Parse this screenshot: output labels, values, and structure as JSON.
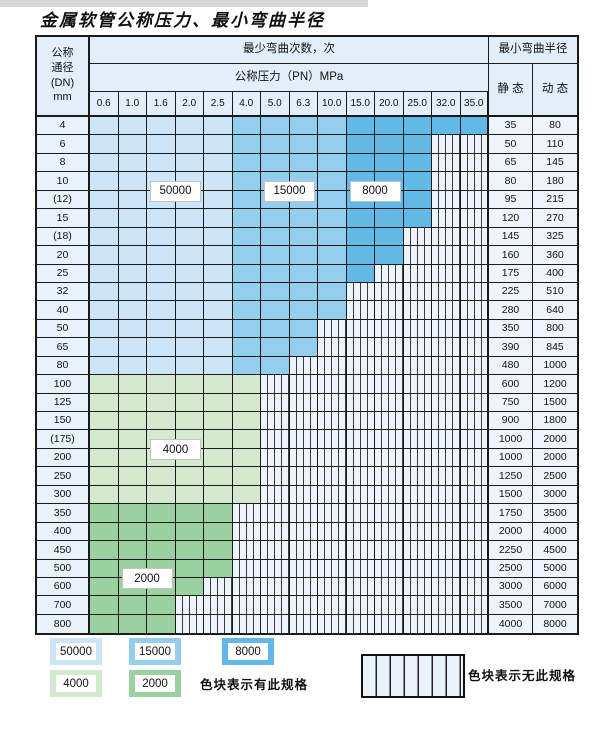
{
  "title": "金属软管公称压力、最小弯曲半径",
  "table": {
    "header": {
      "dn_lines": [
        "公称",
        "通径",
        "(DN)",
        "mm"
      ],
      "cycles_header": "最少弯曲次数，次",
      "radius_header": "最小弯曲半径",
      "pressure_header": "公称压力（PN）MPa",
      "static_label": "静 态",
      "dynamic_label": "动 态",
      "pressure_columns": [
        "0.6",
        "1.0",
        "1.6",
        "2.0",
        "2.5",
        "4.0",
        "5.0",
        "6.3",
        "10.0",
        "15.0",
        "20.0",
        "25.0",
        "32.0",
        "35.0"
      ]
    },
    "rows": [
      {
        "dn": "4",
        "colored_cols": 14,
        "band": "blue",
        "static": "35",
        "dynamic": "80"
      },
      {
        "dn": "6",
        "colored_cols": 12,
        "band": "blue",
        "static": "50",
        "dynamic": "110"
      },
      {
        "dn": "8",
        "colored_cols": 12,
        "band": "blue",
        "static": "65",
        "dynamic": "145"
      },
      {
        "dn": "10",
        "colored_cols": 12,
        "band": "blue",
        "static": "80",
        "dynamic": "180"
      },
      {
        "dn": "(12)",
        "colored_cols": 12,
        "band": "blue",
        "static": "95",
        "dynamic": "215"
      },
      {
        "dn": "15",
        "colored_cols": 12,
        "band": "blue",
        "static": "120",
        "dynamic": "270"
      },
      {
        "dn": "(18)",
        "colored_cols": 11,
        "band": "blue",
        "static": "145",
        "dynamic": "325"
      },
      {
        "dn": "20",
        "colored_cols": 11,
        "band": "blue",
        "static": "160",
        "dynamic": "360"
      },
      {
        "dn": "25",
        "colored_cols": 10,
        "band": "blue",
        "static": "175",
        "dynamic": "400"
      },
      {
        "dn": "32",
        "colored_cols": 9,
        "band": "blue",
        "static": "225",
        "dynamic": "510"
      },
      {
        "dn": "40",
        "colored_cols": 9,
        "band": "blue",
        "static": "280",
        "dynamic": "640"
      },
      {
        "dn": "50",
        "colored_cols": 8,
        "band": "blue",
        "static": "350",
        "dynamic": "800"
      },
      {
        "dn": "65",
        "colored_cols": 8,
        "band": "blue",
        "static": "390",
        "dynamic": "845"
      },
      {
        "dn": "80",
        "colored_cols": 7,
        "band": "blue",
        "static": "480",
        "dynamic": "1000"
      },
      {
        "dn": "100",
        "colored_cols": 6,
        "band": "green4000",
        "static": "600",
        "dynamic": "1200"
      },
      {
        "dn": "125",
        "colored_cols": 6,
        "band": "green4000",
        "static": "750",
        "dynamic": "1500"
      },
      {
        "dn": "150",
        "colored_cols": 6,
        "band": "green4000",
        "static": "900",
        "dynamic": "1800"
      },
      {
        "dn": "(175)",
        "colored_cols": 6,
        "band": "green4000",
        "static": "1000",
        "dynamic": "2000"
      },
      {
        "dn": "200",
        "colored_cols": 6,
        "band": "green4000",
        "static": "1000",
        "dynamic": "2000"
      },
      {
        "dn": "250",
        "colored_cols": 6,
        "band": "green4000",
        "static": "1250",
        "dynamic": "2500"
      },
      {
        "dn": "300",
        "colored_cols": 6,
        "band": "green4000",
        "static": "1500",
        "dynamic": "3000"
      },
      {
        "dn": "350",
        "colored_cols": 5,
        "band": "green2000",
        "static": "1750",
        "dynamic": "3500"
      },
      {
        "dn": "400",
        "colored_cols": 5,
        "band": "green2000",
        "static": "2000",
        "dynamic": "4000"
      },
      {
        "dn": "450",
        "colored_cols": 5,
        "band": "green2000",
        "static": "2250",
        "dynamic": "4500"
      },
      {
        "dn": "500",
        "colored_cols": 5,
        "band": "green2000",
        "static": "2500",
        "dynamic": "5000"
      },
      {
        "dn": "600",
        "colored_cols": 4,
        "band": "green2000",
        "static": "3000",
        "dynamic": "6000"
      },
      {
        "dn": "700",
        "colored_cols": 3,
        "band": "green2000",
        "static": "3500",
        "dynamic": "7000"
      },
      {
        "dn": "800",
        "colored_cols": 3,
        "band": "green2000",
        "static": "4000",
        "dynamic": "8000"
      }
    ],
    "blue_shade_bands": {
      "cycles_50000_col_indices": [
        0,
        4
      ],
      "cycles_15000_col_indices": [
        5,
        8
      ],
      "cycles_8000_col_indices": [
        9,
        13
      ]
    },
    "overlay_labels": [
      {
        "text": "50000",
        "col_start": 2,
        "col_end": 3,
        "between_rows": [
          3,
          4
        ]
      },
      {
        "text": "15000",
        "col_start": 6,
        "col_end": 7,
        "between_rows": [
          3,
          4
        ]
      },
      {
        "text": "8000",
        "col_start": 9,
        "col_end": 10,
        "between_rows": [
          3,
          4
        ]
      },
      {
        "text": "4000",
        "col_start": 2,
        "col_end": 3,
        "between_rows": [
          17,
          18
        ]
      },
      {
        "text": "2000",
        "col_start": 1,
        "col_end": 2,
        "between_rows": [
          24,
          25
        ]
      }
    ]
  },
  "legend": {
    "items": [
      {
        "label": "50000",
        "color_key": "blue_50000"
      },
      {
        "label": "15000",
        "color_key": "blue_15000"
      },
      {
        "label": "8000",
        "color_key": "blue_8000"
      },
      {
        "label": "4000",
        "color_key": "green_4000"
      },
      {
        "label": "2000",
        "color_key": "green_2000"
      }
    ],
    "has_spec_text": "色块表示有此规格",
    "no_spec_text": "色块表示无此规格"
  },
  "colors": {
    "blue_50000": "#cde5f6",
    "blue_15000": "#95cdee",
    "blue_8000": "#62b8e6",
    "green_4000": "#d5e9d1",
    "green_2000": "#9bd0a0",
    "striped_bg": "#eef4fb",
    "stripe_line": "#3c3c3c",
    "header_bg": "#e2eef9",
    "label_col_bg": "#e9f2fb",
    "value_col_bg": "#eff5fc",
    "border": "#1b1b1b"
  }
}
